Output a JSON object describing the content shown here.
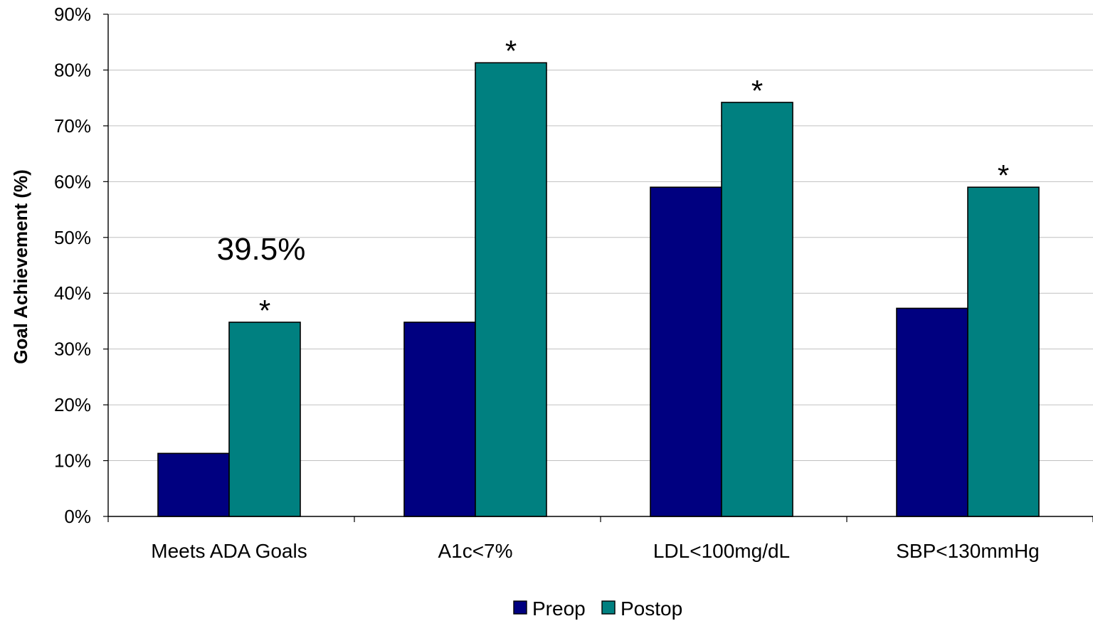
{
  "chart_data": {
    "type": "bar",
    "categories": [
      "Meets ADA Goals",
      "A1c<7%",
      "LDL<100mg/dL",
      "SBP<130mmHg"
    ],
    "series": [
      {
        "name": "Preop",
        "values": [
          11.3,
          34.8,
          59.0,
          37.3
        ],
        "color": "#000080"
      },
      {
        "name": "Postop",
        "values": [
          34.8,
          81.3,
          74.2,
          59.0
        ],
        "color": "#008080"
      }
    ],
    "significance_markers": [
      "*",
      "*",
      "*",
      "*"
    ],
    "annotations": [
      {
        "category": "Meets ADA Goals",
        "text": "39.5%"
      }
    ],
    "title": "",
    "xlabel": "",
    "ylabel": "Goal Achievement (%)",
    "ylim": [
      0,
      90
    ],
    "yticks": [
      "0%",
      "10%",
      "20%",
      "30%",
      "40%",
      "50%",
      "60%",
      "70%",
      "80%",
      "90%"
    ],
    "grid": true,
    "legend_position": "bottom"
  }
}
